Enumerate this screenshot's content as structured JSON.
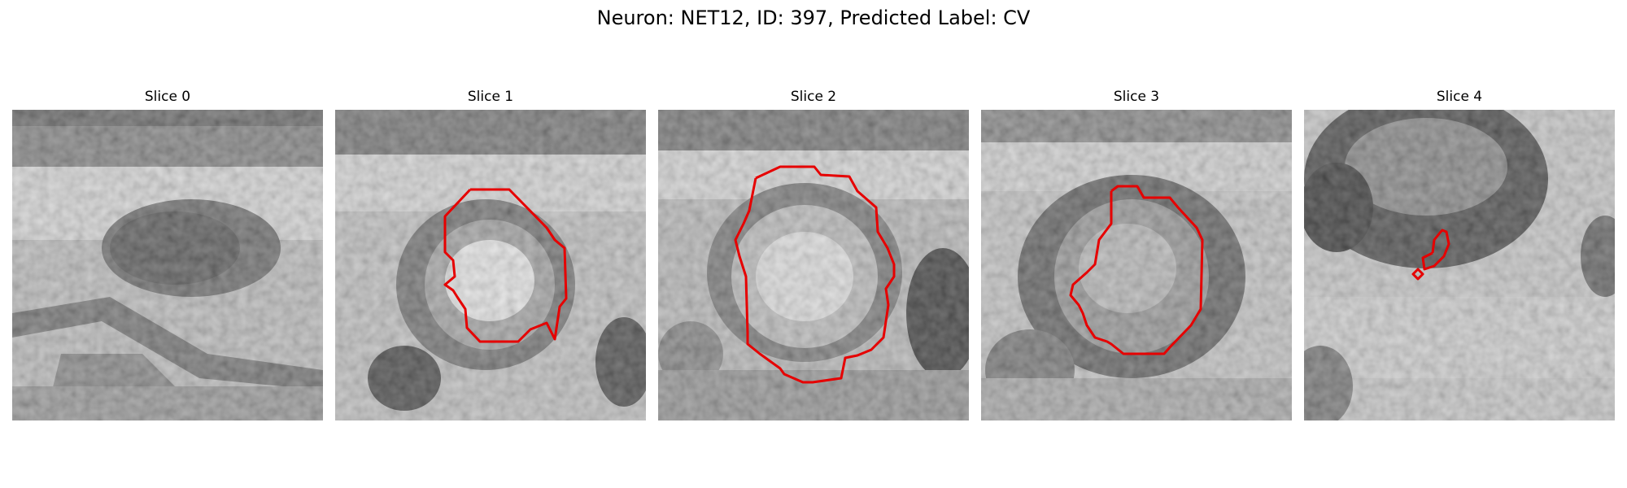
{
  "figure": {
    "title": "Neuron: NET12, ID: 397, Predicted Label: CV"
  },
  "contour_color": "#e60000",
  "panels": [
    {
      "title": "Slice 0"
    },
    {
      "title": "Slice 1"
    },
    {
      "title": "Slice 2"
    },
    {
      "title": "Slice 3"
    },
    {
      "title": "Slice 4"
    }
  ]
}
